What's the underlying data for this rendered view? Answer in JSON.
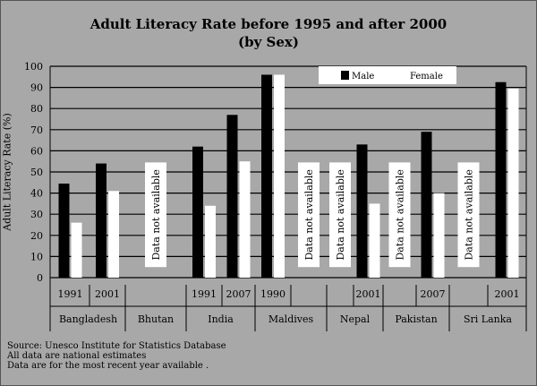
{
  "chart_data": {
    "type": "bar",
    "title": "Adult Literacy Rate before 1995 and after 2000",
    "subtitle": "(by Sex)",
    "ylabel": "Adult Literacy Rate (%)",
    "ylim": [
      0,
      100
    ],
    "yticks": [
      0,
      10,
      20,
      30,
      40,
      50,
      60,
      70,
      80,
      90,
      100
    ],
    "grid": true,
    "legend_position": "top-right",
    "series": [
      {
        "name": "Male",
        "color": "#000000"
      },
      {
        "name": "Female",
        "color": "#ffffff"
      }
    ],
    "countries": [
      {
        "name": "Bangladesh",
        "groups": [
          {
            "year": "1991",
            "male": 44.5,
            "female": 26
          },
          {
            "year": "2001",
            "male": 54,
            "female": 41
          }
        ]
      },
      {
        "name": "Bhutan",
        "groups": [
          {
            "na": true,
            "text": "Data not available"
          }
        ]
      },
      {
        "name": "India",
        "groups": [
          {
            "year": "1991",
            "male": 62,
            "female": 34
          },
          {
            "year": "2007",
            "male": 77,
            "female": 55
          }
        ]
      },
      {
        "name": "Maldives",
        "groups": [
          {
            "year": "1990",
            "male": 96,
            "female": 96
          },
          {
            "na": true,
            "text": "Data not available"
          }
        ]
      },
      {
        "name": "Nepal",
        "groups": [
          {
            "na": true,
            "text": "Data not available"
          },
          {
            "year": "2001",
            "male": 63,
            "female": 35
          }
        ]
      },
      {
        "name": "Pakistan",
        "groups": [
          {
            "na": true,
            "text": "Data not available"
          },
          {
            "year": "2007",
            "male": 69,
            "female": 40
          }
        ]
      },
      {
        "name": "Sri Lanka",
        "groups": [
          {
            "na": true,
            "text": "Data not available"
          },
          {
            "year": "2001",
            "male": 92.5,
            "female": 89.5
          }
        ]
      }
    ]
  },
  "source_notes": [
    "Source: Unesco Institute for Statistics Database",
    "All data are national estimates",
    "Data are for the most recent year available ."
  ]
}
